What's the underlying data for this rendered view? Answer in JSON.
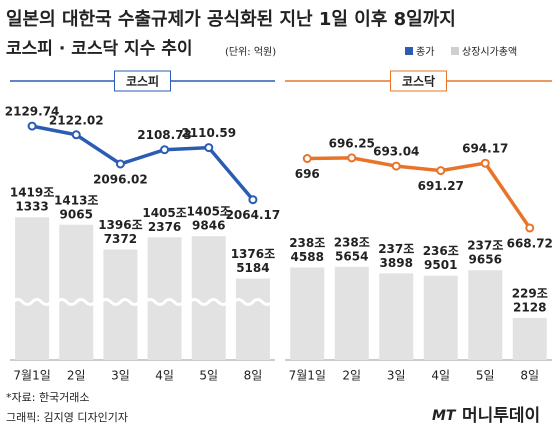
{
  "title": "일본의 대한국 수출규제가 공식화된 지난 1일 이후 8일까지",
  "subtitle": "코스피 · 코스닥 지수 추이",
  "unit": "(단위: 억원)",
  "chart_data": [
    {
      "type": "bar-line",
      "title": "코스피",
      "categories": [
        "7월1일",
        "2일",
        "3일",
        "4일",
        "5일",
        "8일"
      ],
      "series": [
        {
          "name": "상장시가총액",
          "type": "bar",
          "color": "#e2e2e2",
          "values": [
            14191333,
            14139065,
            13967372,
            14052376,
            14059846,
            13765184
          ],
          "value_labels": [
            [
              "1419조",
              "1333"
            ],
            [
              "1413조",
              "9065"
            ],
            [
              "1396조",
              "7372"
            ],
            [
              "1405조",
              "2376"
            ],
            [
              "1405조",
              "9846"
            ],
            [
              "1376조",
              "5184"
            ]
          ]
        },
        {
          "name": "종가",
          "type": "line",
          "color": "#2b5cb3",
          "axis": "y2",
          "values": [
            2129.74,
            2122.02,
            2096.02,
            2108.73,
            2110.59,
            2064.17
          ]
        }
      ],
      "ylim": [
        13200000,
        14450000
      ],
      "y2lim": [
        2055,
        2153
      ],
      "axis_break": true
    },
    {
      "type": "bar-line",
      "title": "코스닥",
      "categories": [
        "7월1일",
        "2일",
        "3일",
        "4일",
        "5일",
        "8일"
      ],
      "series": [
        {
          "type": "bar",
          "color": "#e2e2e2",
          "values": [
            2384588,
            2385654,
            2373898,
            2369501,
            2379656,
            2292128
          ],
          "value_labels": [
            [
              "238조",
              "4588"
            ],
            [
              "238조",
              "5654"
            ],
            [
              "237조",
              "3898"
            ],
            [
              "236조",
              "9501"
            ],
            [
              "237조",
              "9656"
            ],
            [
              "229조",
              "2128"
            ]
          ]
        },
        {
          "type": "line",
          "color": "#e8742a",
          "axis": "y2",
          "values": [
            696,
            696.25,
            693.04,
            691.27,
            694.17,
            668.72
          ]
        }
      ],
      "ylim": [
        2215000,
        2545000
      ],
      "y2lim": [
        664,
        719
      ],
      "axis_break": false
    }
  ],
  "source": "*자료: 한국거래소",
  "credit": "그래픽: 김지영 디자인기자",
  "logo": [
    "MT",
    "머니투데이"
  ]
}
